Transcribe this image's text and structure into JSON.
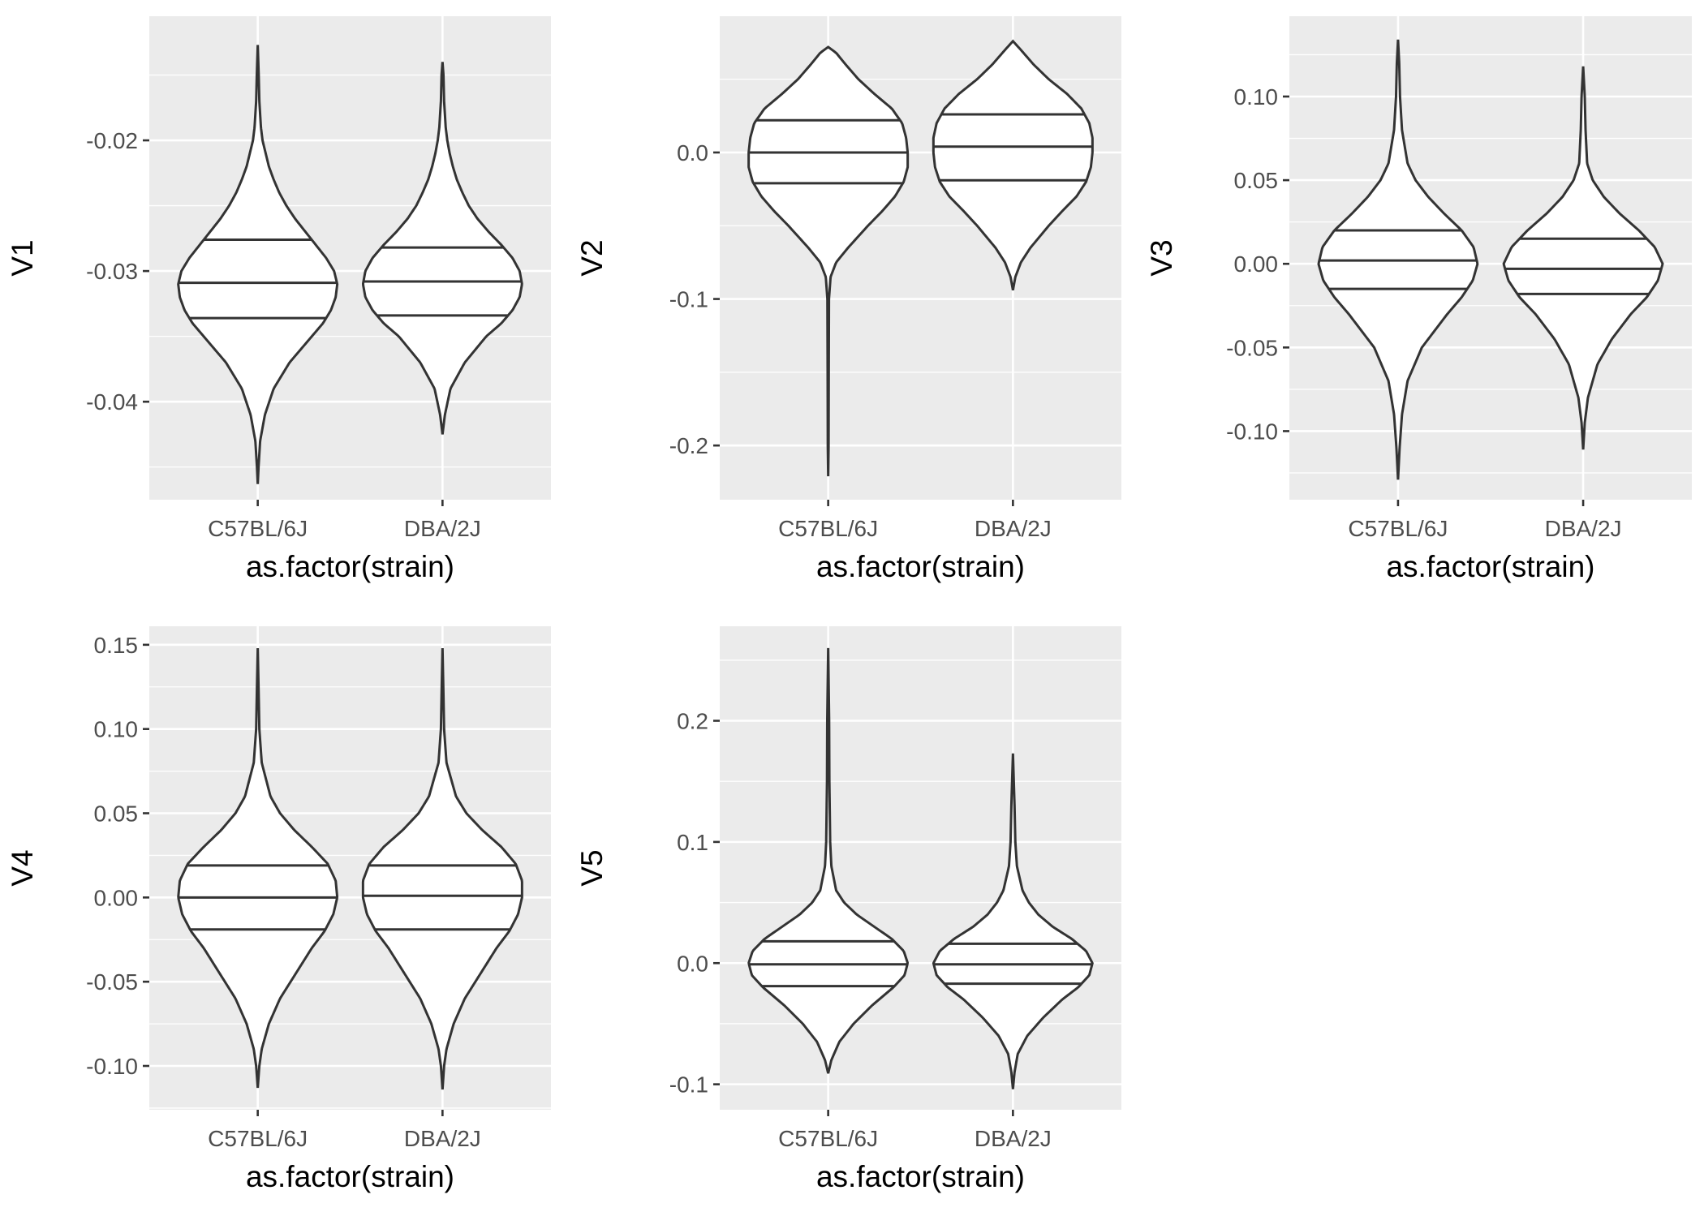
{
  "chart_data": [
    {
      "type": "violin",
      "ylabel": "V1",
      "xlabel": "as.factor(strain)",
      "categories": [
        "C57BL/6J",
        "DBA/2J"
      ],
      "ylim": [
        -0.0475,
        -0.0105
      ],
      "yticks": [
        -0.04,
        -0.03,
        -0.02
      ],
      "ytick_labels": [
        "-0.04",
        "-0.03",
        "-0.02"
      ],
      "series": [
        {
          "name": "C57BL/6J",
          "min": -0.0463,
          "max": -0.0127,
          "quantiles": {
            "q25": -0.0336,
            "median": -0.0309,
            "q75": -0.0276
          },
          "profile": [
            [
              -0.0463,
              0.0
            ],
            [
              -0.045,
              0.01
            ],
            [
              -0.043,
              0.03
            ],
            [
              -0.041,
              0.09
            ],
            [
              -0.039,
              0.2
            ],
            [
              -0.037,
              0.4
            ],
            [
              -0.035,
              0.68
            ],
            [
              -0.034,
              0.82
            ],
            [
              -0.033,
              0.92
            ],
            [
              -0.032,
              0.98
            ],
            [
              -0.031,
              1.0
            ],
            [
              -0.03,
              0.96
            ],
            [
              -0.029,
              0.86
            ],
            [
              -0.028,
              0.73
            ],
            [
              -0.027,
              0.6
            ],
            [
              -0.026,
              0.47
            ],
            [
              -0.025,
              0.36
            ],
            [
              -0.024,
              0.27
            ],
            [
              -0.023,
              0.2
            ],
            [
              -0.022,
              0.14
            ],
            [
              -0.021,
              0.1
            ],
            [
              -0.02,
              0.06
            ],
            [
              -0.019,
              0.04
            ],
            [
              -0.018,
              0.03
            ],
            [
              -0.017,
              0.02
            ],
            [
              -0.015,
              0.012
            ],
            [
              -0.0127,
              0.0
            ]
          ]
        },
        {
          "name": "DBA/2J",
          "min": -0.0425,
          "max": -0.014,
          "quantiles": {
            "q25": -0.0334,
            "median": -0.0308,
            "q75": -0.0282
          },
          "profile": [
            [
              -0.0425,
              0.0
            ],
            [
              -0.041,
              0.03
            ],
            [
              -0.039,
              0.1
            ],
            [
              -0.037,
              0.28
            ],
            [
              -0.035,
              0.55
            ],
            [
              -0.034,
              0.74
            ],
            [
              -0.033,
              0.88
            ],
            [
              -0.032,
              0.97
            ],
            [
              -0.031,
              1.0
            ],
            [
              -0.03,
              0.97
            ],
            [
              -0.029,
              0.88
            ],
            [
              -0.028,
              0.74
            ],
            [
              -0.027,
              0.58
            ],
            [
              -0.026,
              0.44
            ],
            [
              -0.025,
              0.33
            ],
            [
              -0.024,
              0.25
            ],
            [
              -0.023,
              0.18
            ],
            [
              -0.022,
              0.13
            ],
            [
              -0.021,
              0.09
            ],
            [
              -0.02,
              0.06
            ],
            [
              -0.019,
              0.04
            ],
            [
              -0.017,
              0.02
            ],
            [
              -0.015,
              0.012
            ],
            [
              -0.014,
              0.0
            ]
          ]
        }
      ]
    },
    {
      "type": "violin",
      "ylabel": "V2",
      "xlabel": "as.factor(strain)",
      "categories": [
        "C57BL/6J",
        "DBA/2J"
      ],
      "ylim": [
        -0.237,
        0.093
      ],
      "yticks": [
        -0.2,
        -0.1,
        0.0
      ],
      "ytick_labels": [
        "-0.2",
        "-0.1",
        "0.0"
      ],
      "series": [
        {
          "name": "C57BL/6J",
          "min": -0.221,
          "max": 0.072,
          "quantiles": {
            "q25": -0.021,
            "median": 0.0,
            "q75": 0.022
          },
          "profile": [
            [
              -0.221,
              0.0
            ],
            [
              -0.2,
              0.005
            ],
            [
              -0.15,
              0.007
            ],
            [
              -0.1,
              0.01
            ],
            [
              -0.085,
              0.03
            ],
            [
              -0.075,
              0.1
            ],
            [
              -0.065,
              0.25
            ],
            [
              -0.05,
              0.5
            ],
            [
              -0.04,
              0.68
            ],
            [
              -0.03,
              0.84
            ],
            [
              -0.02,
              0.95
            ],
            [
              -0.01,
              1.0
            ],
            [
              0.0,
              1.0
            ],
            [
              0.01,
              0.98
            ],
            [
              0.02,
              0.93
            ],
            [
              0.03,
              0.8
            ],
            [
              0.04,
              0.58
            ],
            [
              0.05,
              0.38
            ],
            [
              0.06,
              0.22
            ],
            [
              0.068,
              0.1
            ],
            [
              0.072,
              0.0
            ]
          ]
        },
        {
          "name": "DBA/2J",
          "min": -0.094,
          "max": 0.076,
          "quantiles": {
            "q25": -0.019,
            "median": 0.004,
            "q75": 0.026
          },
          "profile": [
            [
              -0.094,
              0.0
            ],
            [
              -0.085,
              0.03
            ],
            [
              -0.075,
              0.1
            ],
            [
              -0.065,
              0.22
            ],
            [
              -0.05,
              0.45
            ],
            [
              -0.04,
              0.62
            ],
            [
              -0.03,
              0.8
            ],
            [
              -0.02,
              0.92
            ],
            [
              -0.01,
              0.98
            ],
            [
              0.0,
              1.0
            ],
            [
              0.01,
              1.0
            ],
            [
              0.02,
              0.96
            ],
            [
              0.03,
              0.86
            ],
            [
              0.04,
              0.68
            ],
            [
              0.05,
              0.45
            ],
            [
              0.06,
              0.26
            ],
            [
              0.07,
              0.1
            ],
            [
              0.076,
              0.0
            ]
          ]
        }
      ]
    },
    {
      "type": "violin",
      "ylabel": "V3",
      "xlabel": "as.factor(strain)",
      "categories": [
        "C57BL/6J",
        "DBA/2J"
      ],
      "ylim": [
        -0.141,
        0.148
      ],
      "yticks": [
        -0.1,
        -0.05,
        0.0,
        0.05,
        0.1
      ],
      "ytick_labels": [
        "-0.10",
        "-0.05",
        "0.00",
        "0.05",
        "0.10"
      ],
      "series": [
        {
          "name": "C57BL/6J",
          "min": -0.129,
          "max": 0.134,
          "quantiles": {
            "q25": -0.015,
            "median": 0.002,
            "q75": 0.02
          },
          "profile": [
            [
              -0.129,
              0.0
            ],
            [
              -0.11,
              0.02
            ],
            [
              -0.09,
              0.05
            ],
            [
              -0.07,
              0.12
            ],
            [
              -0.05,
              0.3
            ],
            [
              -0.04,
              0.46
            ],
            [
              -0.03,
              0.62
            ],
            [
              -0.02,
              0.8
            ],
            [
              -0.01,
              0.94
            ],
            [
              0.0,
              1.0
            ],
            [
              0.01,
              0.95
            ],
            [
              0.02,
              0.8
            ],
            [
              0.03,
              0.58
            ],
            [
              0.04,
              0.38
            ],
            [
              0.05,
              0.22
            ],
            [
              0.06,
              0.12
            ],
            [
              0.08,
              0.05
            ],
            [
              0.1,
              0.025
            ],
            [
              0.12,
              0.015
            ],
            [
              0.134,
              0.0
            ]
          ]
        },
        {
          "name": "DBA/2J",
          "min": -0.111,
          "max": 0.118,
          "quantiles": {
            "q25": -0.018,
            "median": -0.003,
            "q75": 0.015
          },
          "profile": [
            [
              -0.111,
              0.0
            ],
            [
              -0.095,
              0.02
            ],
            [
              -0.08,
              0.06
            ],
            [
              -0.06,
              0.18
            ],
            [
              -0.045,
              0.36
            ],
            [
              -0.03,
              0.6
            ],
            [
              -0.02,
              0.8
            ],
            [
              -0.01,
              0.94
            ],
            [
              0.0,
              1.0
            ],
            [
              0.01,
              0.9
            ],
            [
              0.02,
              0.7
            ],
            [
              0.03,
              0.46
            ],
            [
              0.04,
              0.26
            ],
            [
              0.05,
              0.12
            ],
            [
              0.06,
              0.05
            ],
            [
              0.08,
              0.03
            ],
            [
              0.1,
              0.02
            ],
            [
              0.118,
              0.0
            ]
          ]
        }
      ]
    },
    {
      "type": "violin",
      "ylabel": "V4",
      "xlabel": "as.factor(strain)",
      "categories": [
        "C57BL/6J",
        "DBA/2J"
      ],
      "ylim": [
        -0.126,
        0.161
      ],
      "yticks": [
        -0.1,
        -0.05,
        0.0,
        0.05,
        0.1,
        0.15
      ],
      "ytick_labels": [
        "-0.10",
        "-0.05",
        "0.00",
        "0.05",
        "0.10",
        "0.15"
      ],
      "series": [
        {
          "name": "C57BL/6J",
          "min": -0.113,
          "max": 0.148,
          "quantiles": {
            "q25": -0.019,
            "median": 0.0,
            "q75": 0.019
          },
          "profile": [
            [
              -0.113,
              0.0
            ],
            [
              -0.1,
              0.02
            ],
            [
              -0.09,
              0.05
            ],
            [
              -0.075,
              0.14
            ],
            [
              -0.06,
              0.28
            ],
            [
              -0.045,
              0.48
            ],
            [
              -0.03,
              0.68
            ],
            [
              -0.02,
              0.84
            ],
            [
              -0.01,
              0.95
            ],
            [
              0.0,
              1.0
            ],
            [
              0.01,
              0.98
            ],
            [
              0.02,
              0.88
            ],
            [
              0.03,
              0.68
            ],
            [
              0.04,
              0.46
            ],
            [
              0.05,
              0.28
            ],
            [
              0.06,
              0.16
            ],
            [
              0.08,
              0.05
            ],
            [
              0.1,
              0.02
            ],
            [
              0.12,
              0.012
            ],
            [
              0.148,
              0.0
            ]
          ]
        },
        {
          "name": "DBA/2J",
          "min": -0.114,
          "max": 0.148,
          "quantiles": {
            "q25": -0.019,
            "median": 0.001,
            "q75": 0.019
          },
          "profile": [
            [
              -0.114,
              0.0
            ],
            [
              -0.1,
              0.02
            ],
            [
              -0.09,
              0.05
            ],
            [
              -0.075,
              0.14
            ],
            [
              -0.06,
              0.28
            ],
            [
              -0.045,
              0.48
            ],
            [
              -0.03,
              0.68
            ],
            [
              -0.02,
              0.84
            ],
            [
              -0.01,
              0.95
            ],
            [
              0.0,
              1.0
            ],
            [
              0.01,
              1.0
            ],
            [
              0.02,
              0.92
            ],
            [
              0.03,
              0.74
            ],
            [
              0.04,
              0.5
            ],
            [
              0.05,
              0.3
            ],
            [
              0.06,
              0.17
            ],
            [
              0.08,
              0.05
            ],
            [
              0.1,
              0.02
            ],
            [
              0.12,
              0.012
            ],
            [
              0.148,
              0.0
            ]
          ]
        }
      ]
    },
    {
      "type": "violin",
      "ylabel": "V5",
      "xlabel": "as.factor(strain)",
      "categories": [
        "C57BL/6J",
        "DBA/2J"
      ],
      "ylim": [
        -0.121,
        0.278
      ],
      "yticks": [
        -0.1,
        0.0,
        0.1,
        0.2
      ],
      "ytick_labels": [
        "-0.1",
        "0.0",
        "0.1",
        "0.2"
      ],
      "series": [
        {
          "name": "C57BL/6J",
          "min": -0.091,
          "max": 0.26,
          "quantiles": {
            "q25": -0.019,
            "median": -0.001,
            "q75": 0.018
          },
          "profile": [
            [
              -0.091,
              0.0
            ],
            [
              -0.08,
              0.04
            ],
            [
              -0.065,
              0.14
            ],
            [
              -0.05,
              0.32
            ],
            [
              -0.035,
              0.55
            ],
            [
              -0.02,
              0.82
            ],
            [
              -0.01,
              0.96
            ],
            [
              0.0,
              1.0
            ],
            [
              0.01,
              0.95
            ],
            [
              0.02,
              0.8
            ],
            [
              0.03,
              0.58
            ],
            [
              0.04,
              0.36
            ],
            [
              0.05,
              0.2
            ],
            [
              0.06,
              0.1
            ],
            [
              0.08,
              0.04
            ],
            [
              0.1,
              0.025
            ],
            [
              0.15,
              0.015
            ],
            [
              0.2,
              0.012
            ],
            [
              0.26,
              0.0
            ]
          ]
        },
        {
          "name": "DBA/2J",
          "min": -0.104,
          "max": 0.173,
          "quantiles": {
            "q25": -0.017,
            "median": -0.001,
            "q75": 0.016
          },
          "profile": [
            [
              -0.104,
              0.0
            ],
            [
              -0.09,
              0.02
            ],
            [
              -0.075,
              0.06
            ],
            [
              -0.06,
              0.18
            ],
            [
              -0.045,
              0.38
            ],
            [
              -0.03,
              0.62
            ],
            [
              -0.02,
              0.82
            ],
            [
              -0.01,
              0.96
            ],
            [
              0.0,
              1.0
            ],
            [
              0.01,
              0.92
            ],
            [
              0.02,
              0.74
            ],
            [
              0.03,
              0.5
            ],
            [
              0.04,
              0.32
            ],
            [
              0.05,
              0.2
            ],
            [
              0.06,
              0.12
            ],
            [
              0.08,
              0.05
            ],
            [
              0.1,
              0.03
            ],
            [
              0.13,
              0.02
            ],
            [
              0.173,
              0.0
            ]
          ]
        }
      ]
    }
  ]
}
